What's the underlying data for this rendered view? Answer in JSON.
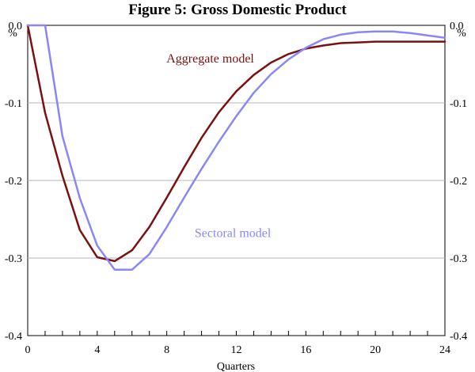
{
  "chart_data": {
    "type": "line",
    "title": "Figure 5: Gross Domestic Product",
    "xlabel": "Quarters",
    "ylabel_left": "%",
    "ylabel_right": "%",
    "xlim": [
      0,
      24
    ],
    "ylim": [
      -0.4,
      0.0
    ],
    "x_ticks": [
      0,
      4,
      8,
      12,
      16,
      20,
      24
    ],
    "x_tick_labels": [
      "0",
      "4",
      "8",
      "12",
      "16",
      "20",
      "24"
    ],
    "y_ticks": [
      0.0,
      -0.1,
      -0.2,
      -0.3,
      -0.4
    ],
    "y_tick_labels": [
      "0.0",
      "-0.1",
      "-0.2",
      "-0.3",
      "-0.4"
    ],
    "grid": "horizontal",
    "x": [
      0,
      1,
      2,
      3,
      4,
      5,
      6,
      7,
      8,
      9,
      10,
      11,
      12,
      13,
      14,
      15,
      16,
      17,
      18,
      19,
      20,
      21,
      22,
      23,
      24
    ],
    "series": [
      {
        "name": "Aggregate model",
        "color": "#7b1010",
        "values": [
          0.0,
          -0.113,
          -0.194,
          -0.264,
          -0.299,
          -0.304,
          -0.29,
          -0.26,
          -0.222,
          -0.183,
          -0.145,
          -0.112,
          -0.085,
          -0.064,
          -0.048,
          -0.037,
          -0.03,
          -0.026,
          -0.023,
          -0.022,
          -0.021,
          -0.021,
          -0.021,
          -0.021,
          -0.021
        ]
      },
      {
        "name": "Sectoral model",
        "color": "#8a87f5",
        "values": [
          0.0,
          0.0,
          -0.143,
          -0.223,
          -0.284,
          -0.315,
          -0.315,
          -0.295,
          -0.26,
          -0.222,
          -0.185,
          -0.15,
          -0.117,
          -0.087,
          -0.063,
          -0.044,
          -0.029,
          -0.018,
          -0.012,
          -0.009,
          -0.008,
          -0.008,
          -0.01,
          -0.013,
          -0.016
        ]
      }
    ],
    "annotations": [
      {
        "text": "Aggregate model",
        "series": "Aggregate model",
        "x": 10.5,
        "y": -0.043
      },
      {
        "text": "Sectoral model",
        "series": "Sectoral model",
        "x": 11.8,
        "y": -0.268
      }
    ]
  }
}
